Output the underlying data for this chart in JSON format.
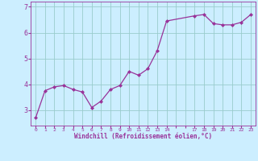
{
  "x": [
    0,
    1,
    2,
    3,
    4,
    5,
    6,
    7,
    8,
    9,
    10,
    11,
    12,
    13,
    14,
    17,
    18,
    19,
    20,
    21,
    22,
    23
  ],
  "y": [
    2.7,
    3.75,
    3.9,
    3.95,
    3.8,
    3.7,
    3.1,
    3.35,
    3.8,
    3.95,
    4.5,
    4.35,
    4.6,
    5.3,
    6.45,
    6.65,
    6.7,
    6.35,
    6.3,
    6.3,
    6.4,
    6.7
  ],
  "line_color": "#993399",
  "marker_color": "#993399",
  "bg_color": "#cceeff",
  "grid_color": "#99cccc",
  "xlabel": "Windchill (Refroidissement éolien,°C)",
  "ylim": [
    2.4,
    7.2
  ],
  "yticks": [
    3,
    4,
    5,
    6,
    7
  ],
  "figsize": [
    3.2,
    2.0
  ],
  "dpi": 100,
  "font_color": "#993399",
  "tick_color": "#993399"
}
